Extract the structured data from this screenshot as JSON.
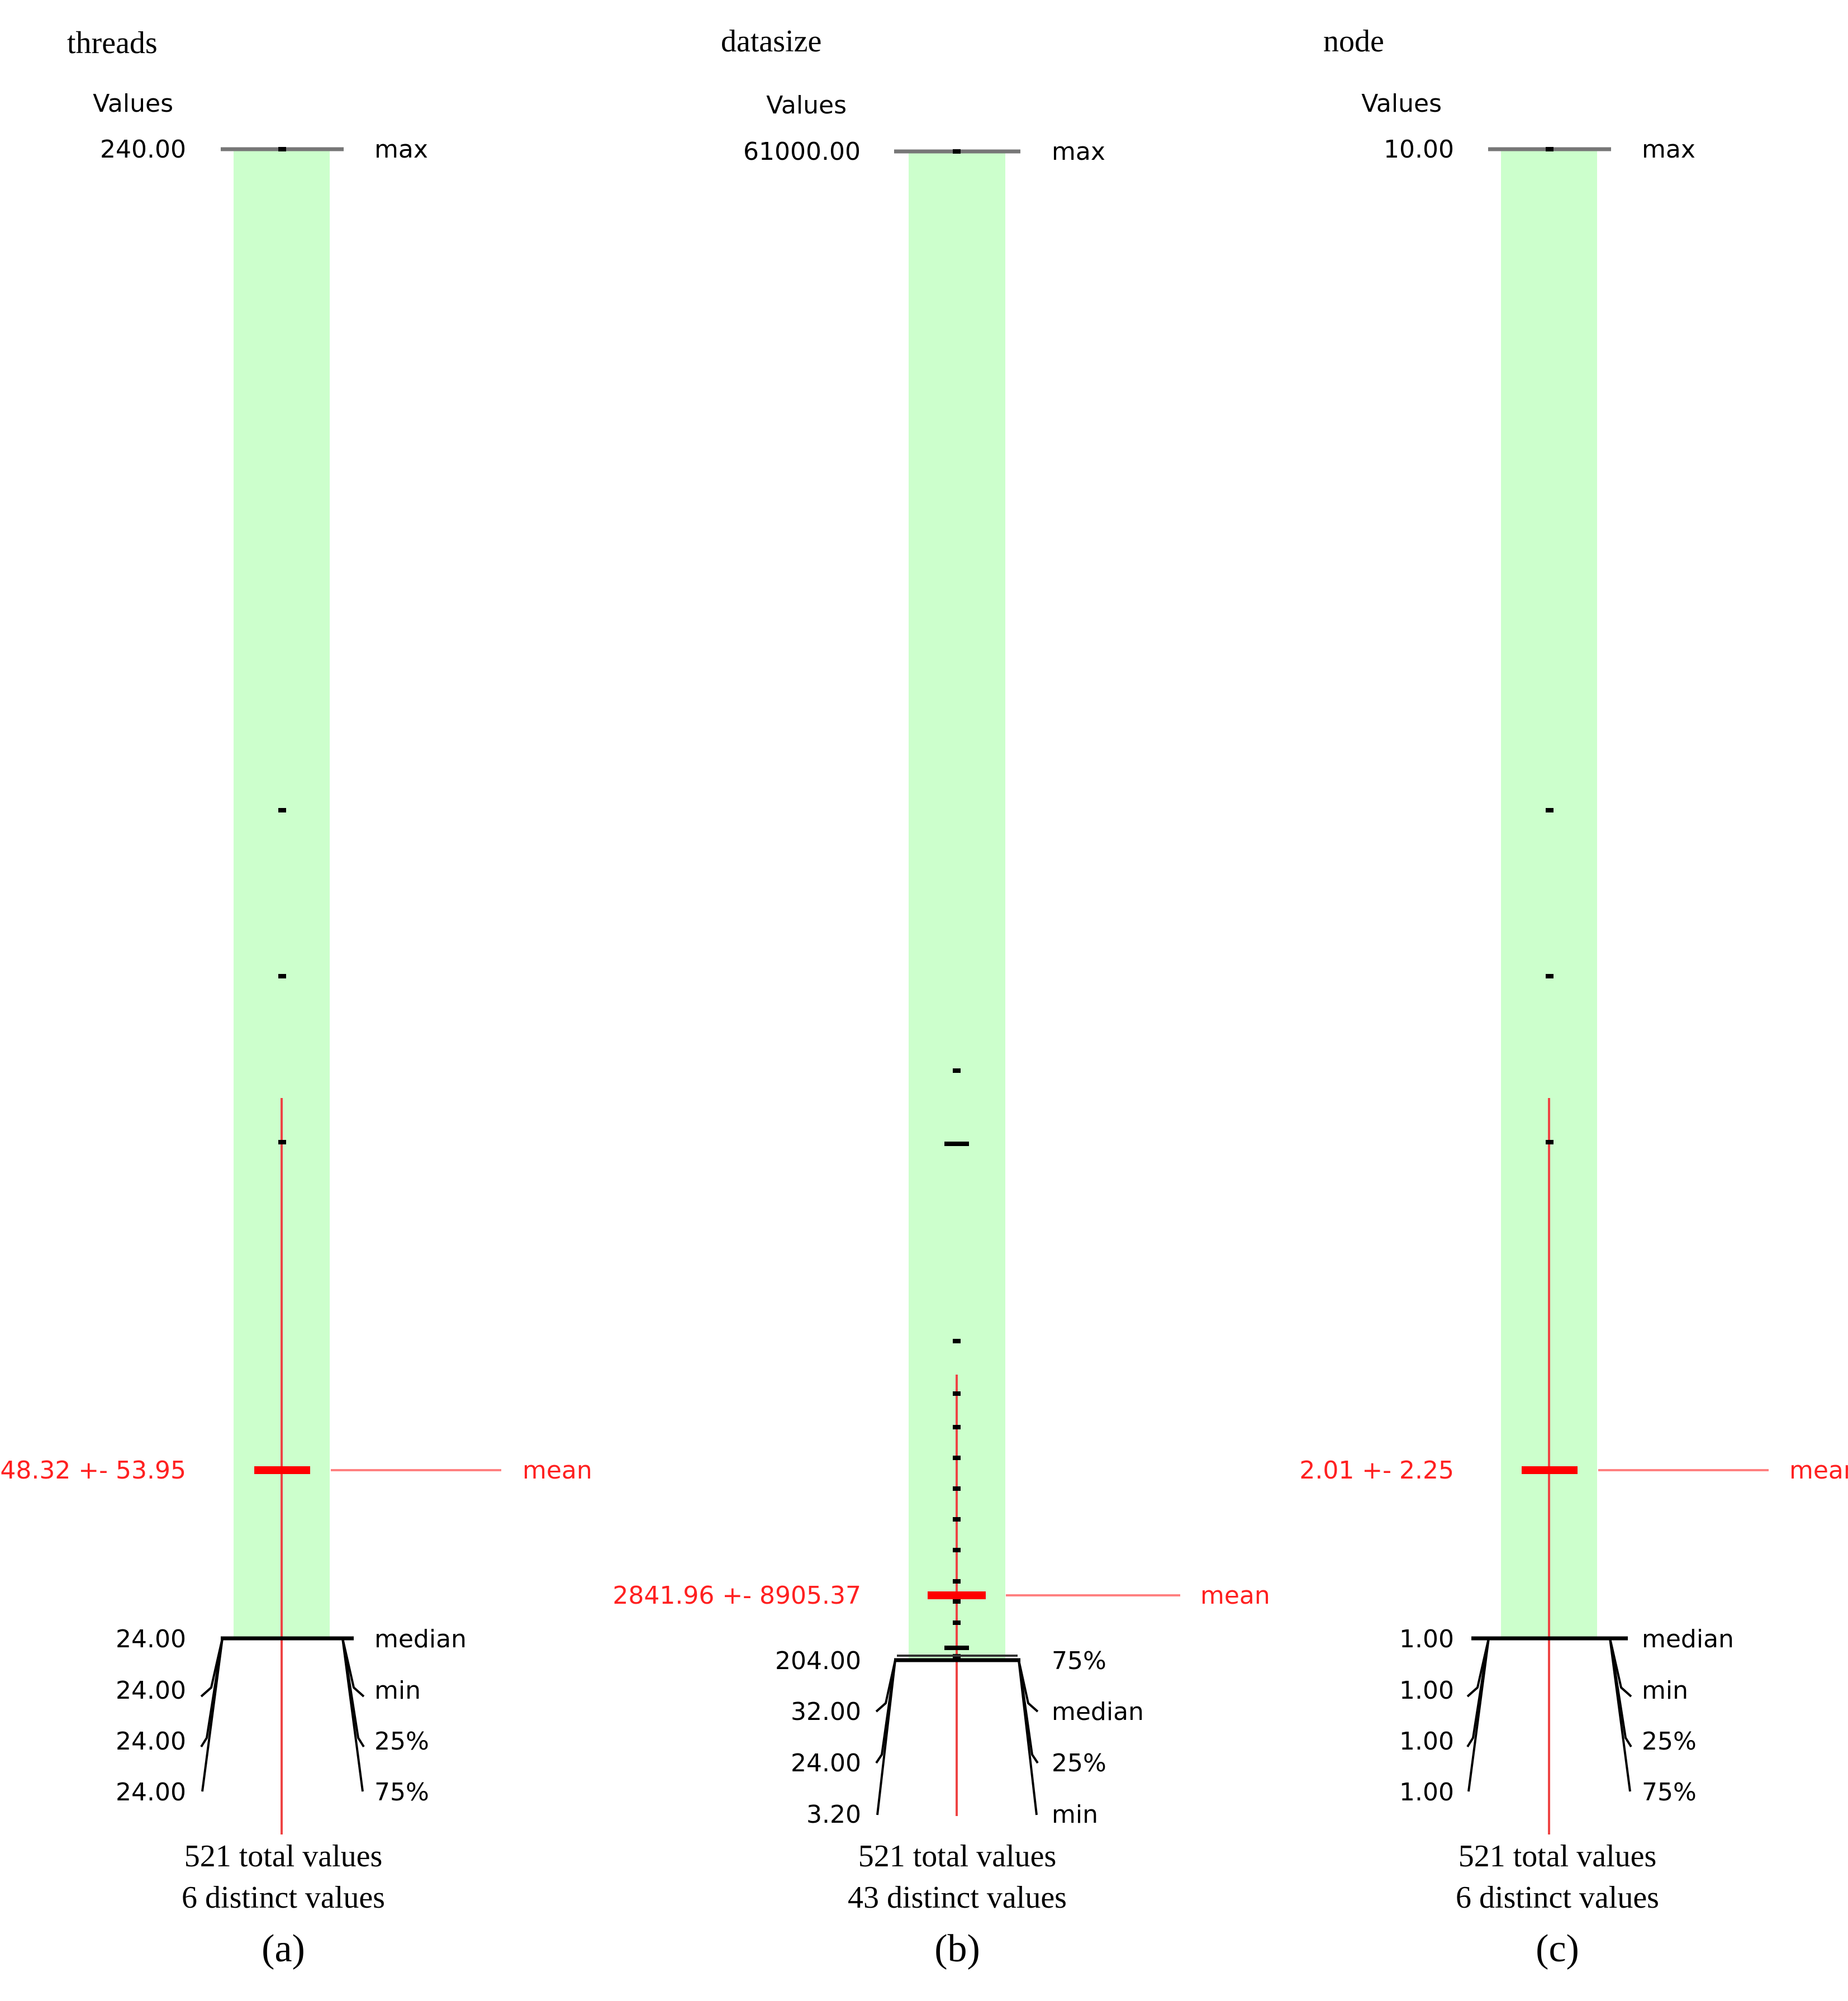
{
  "chart_data": [
    {
      "type": "box",
      "title": "threads",
      "values_label": "Values",
      "max": {
        "value": "240.00",
        "label": "max"
      },
      "mean": {
        "text": "48.32 +- 53.95",
        "label": "mean"
      },
      "stat_values": [
        "24.00",
        "24.00",
        "24.00",
        "24.00"
      ],
      "stat_labels": [
        "median",
        "min",
        "25%",
        "75%"
      ],
      "total_values": "521 total values",
      "distinct_values": "6 distinct values",
      "caption": "(a)",
      "value_ticks": [
        240,
        120,
        90,
        60,
        48
      ],
      "mean_value": 48.32,
      "mean_sd": 53.95,
      "axis_range": [
        24,
        240
      ]
    },
    {
      "type": "box",
      "title": "datasize",
      "values_label": "Values",
      "max": {
        "value": "61000.00",
        "label": "max"
      },
      "mean": {
        "text": "2841.96 +- 8905.37",
        "label": "mean"
      },
      "stat_values": [
        "204.00",
        "32.00",
        "24.00",
        "3.20"
      ],
      "stat_labels": [
        "75%",
        "median",
        "25%",
        "min"
      ],
      "total_values": "521 total values",
      "distinct_values": "43 distinct values",
      "caption": "(b)",
      "value_ticks": [
        61000,
        19000,
        14000,
        5000,
        3200,
        2400,
        1600,
        1200,
        800,
        400
      ],
      "mean_value": 2841.96,
      "mean_sd": 8905.37,
      "axis_range": [
        204,
        61000
      ]
    },
    {
      "type": "box",
      "title": "node",
      "values_label": "Values",
      "max": {
        "value": "10.00",
        "label": "max"
      },
      "mean": {
        "text": "2.01 +- 2.25",
        "label": "mean"
      },
      "stat_values": [
        "1.00",
        "1.00",
        "1.00",
        "1.00"
      ],
      "stat_labels": [
        "median",
        "min",
        "25%",
        "75%"
      ],
      "total_values": "521 total values",
      "distinct_values": "6 distinct values",
      "caption": "(c)",
      "value_ticks": [
        10,
        5,
        4,
        3,
        2
      ],
      "mean_value": 2.01,
      "mean_sd": 2.25,
      "axis_range": [
        1,
        10
      ]
    }
  ]
}
